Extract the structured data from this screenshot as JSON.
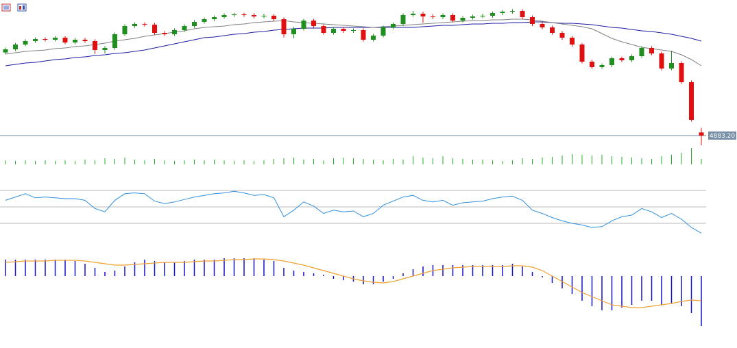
{
  "chart_data": {
    "type": "candlestick",
    "ylim": [
      4859,
      5180
    ],
    "up_color": "#1f8f1f",
    "down_color": "#e01010",
    "candles": [
      [
        5065,
        5076,
        5061,
        5072
      ],
      [
        5072,
        5086,
        5068,
        5082.5
      ],
      [
        5082.5,
        5094,
        5079,
        5090
      ],
      [
        5090,
        5098,
        5086,
        5094.5
      ],
      [
        5094.5,
        5098,
        5089,
        5093
      ],
      [
        5093,
        5101,
        5089,
        5097.5
      ],
      [
        5097.5,
        5101,
        5083,
        5087
      ],
      [
        5087,
        5097,
        5083,
        5093
      ],
      [
        5093,
        5097,
        5086,
        5090
      ],
      [
        5090,
        5094,
        5062,
        5070.5
      ],
      [
        5070.5,
        5079,
        5063,
        5075
      ],
      [
        5075,
        5109,
        5071,
        5105
      ],
      [
        5105,
        5127,
        5101,
        5123
      ],
      [
        5123,
        5131,
        5119,
        5127.5
      ],
      [
        5127.5,
        5131,
        5122,
        5126
      ],
      [
        5126,
        5130,
        5104,
        5108
      ],
      [
        5108,
        5112,
        5101,
        5105
      ],
      [
        5105,
        5118,
        5101,
        5114
      ],
      [
        5114,
        5127,
        5110,
        5123
      ],
      [
        5123,
        5136,
        5119,
        5132
      ],
      [
        5132,
        5142,
        5128,
        5138
      ],
      [
        5138,
        5146,
        5134,
        5142.5
      ],
      [
        5142.5,
        5151,
        5139,
        5147
      ],
      [
        5147,
        5152,
        5143,
        5148.5
      ],
      [
        5148.5,
        5152,
        5143,
        5147
      ],
      [
        5147,
        5151,
        5140,
        5144
      ],
      [
        5144,
        5150,
        5140,
        5145.5
      ],
      [
        5145.5,
        5149,
        5134,
        5138
      ],
      [
        5138,
        5142,
        5098,
        5105
      ],
      [
        5105,
        5121,
        5096,
        5117
      ],
      [
        5117,
        5139,
        5113,
        5135
      ],
      [
        5135,
        5139,
        5119,
        5123
      ],
      [
        5123,
        5127,
        5104,
        5108
      ],
      [
        5108,
        5121,
        5104,
        5117
      ],
      [
        5117,
        5121,
        5108,
        5112.5
      ],
      [
        5112.5,
        5118,
        5108,
        5114
      ],
      [
        5114,
        5118,
        5089,
        5093
      ],
      [
        5093,
        5106,
        5089,
        5102
      ],
      [
        5102,
        5124,
        5098,
        5120
      ],
      [
        5120,
        5131,
        5116,
        5127.5
      ],
      [
        5127.5,
        5151,
        5123,
        5147
      ],
      [
        5147,
        5156,
        5143,
        5150
      ],
      [
        5150,
        5154,
        5130,
        5144
      ],
      [
        5144,
        5149,
        5138,
        5142.5
      ],
      [
        5142.5,
        5151,
        5138,
        5147
      ],
      [
        5147,
        5151,
        5131,
        5135
      ],
      [
        5135,
        5145,
        5131,
        5141
      ],
      [
        5141,
        5148,
        5137,
        5144
      ],
      [
        5144,
        5150,
        5140,
        5145.5
      ],
      [
        5145.5,
        5155,
        5141,
        5151.5
      ],
      [
        5151.5,
        5158,
        5147,
        5154.5
      ],
      [
        5154.5,
        5160,
        5150,
        5156
      ],
      [
        5156,
        5160,
        5138,
        5142.5
      ],
      [
        5142.5,
        5146,
        5123,
        5127.5
      ],
      [
        5127.5,
        5131,
        5116,
        5120
      ],
      [
        5120,
        5124,
        5104,
        5108
      ],
      [
        5108,
        5112,
        5093,
        5097.5
      ],
      [
        5097.5,
        5101,
        5078,
        5082.5
      ],
      [
        5082.5,
        5086,
        5041,
        5045
      ],
      [
        5045,
        5049,
        5029,
        5033
      ],
      [
        5033,
        5041,
        5029,
        5037.5
      ],
      [
        5037.5,
        5056,
        5033,
        5052.5
      ],
      [
        5052.5,
        5056,
        5044,
        5048
      ],
      [
        5048,
        5061,
        5044,
        5057
      ],
      [
        5057,
        5079,
        5053,
        5075
      ],
      [
        5075,
        5079,
        5059,
        5063
      ],
      [
        5063,
        5067,
        5026,
        5030
      ],
      [
        5030,
        5069,
        5026,
        5042
      ],
      [
        5042,
        5046,
        4996,
        5000
      ],
      [
        5000,
        5004,
        4914,
        4917.5
      ],
      [
        4890,
        4900,
        4862,
        4883.2
      ]
    ],
    "ma_fast": {
      "color": "#808080",
      "values": [
        5061.5,
        5064.5,
        5067.5,
        5069,
        5070.5,
        5073.5,
        5075,
        5078,
        5079.5,
        5082.5,
        5085.5,
        5090,
        5093,
        5096,
        5100.5,
        5103.5,
        5106.5,
        5109.5,
        5112.5,
        5117,
        5120,
        5121.5,
        5123,
        5126,
        5127.5,
        5130.5,
        5132,
        5133.5,
        5135,
        5132,
        5130.5,
        5129,
        5127.5,
        5126,
        5124.5,
        5123,
        5121.5,
        5120,
        5121.5,
        5123,
        5124.5,
        5126,
        5127.5,
        5129,
        5130.5,
        5132,
        5133.5,
        5135,
        5135,
        5136.5,
        5136.5,
        5138,
        5138,
        5136.5,
        5133.5,
        5130.5,
        5127.5,
        5124.5,
        5121.5,
        5117,
        5106.5,
        5096,
        5088.5,
        5082.5,
        5076.5,
        5073.5,
        5070.5,
        5067.5,
        5060,
        5049.5,
        5036
      ]
    },
    "ma_slow": {
      "color": "#1a1aa0",
      "values": [
        5036,
        5039,
        5042,
        5043.5,
        5046.5,
        5049.5,
        5051,
        5054,
        5055.5,
        5058.5,
        5060,
        5063,
        5064.5,
        5067.5,
        5070.5,
        5075,
        5079.5,
        5084,
        5088.5,
        5093,
        5097.5,
        5099,
        5102,
        5105,
        5106.5,
        5109.5,
        5111,
        5114,
        5115.5,
        5117,
        5118.5,
        5118.5,
        5118.5,
        5120,
        5120,
        5120,
        5120,
        5120,
        5120,
        5120,
        5120,
        5120,
        5121.5,
        5123,
        5124.5,
        5124.5,
        5126,
        5127.5,
        5127.5,
        5129,
        5129,
        5130.5,
        5130.5,
        5132,
        5132,
        5130.5,
        5129,
        5129,
        5127.5,
        5126,
        5123,
        5120,
        5118.5,
        5115.5,
        5112.5,
        5111,
        5108,
        5105,
        5100.5,
        5096,
        5090
      ]
    },
    "last_price": {
      "value": 4883.2,
      "label": "4883.20"
    },
    "price_line_color": "#7890a8",
    "volume": {
      "color": "#22b022",
      "ylim": [
        0,
        30000
      ],
      "values": [
        6000,
        5000,
        6000,
        5000,
        6000,
        5000,
        6000,
        5000,
        7000,
        6000,
        9000,
        8000,
        10000,
        7000,
        6000,
        8000,
        6000,
        5000,
        6000,
        7000,
        6000,
        7000,
        6000,
        5000,
        6000,
        5000,
        6000,
        8000,
        9000,
        10000,
        7000,
        8000,
        6000,
        9000,
        10000,
        9000,
        8000,
        7000,
        6000,
        8000,
        7000,
        12000,
        10000,
        9000,
        12000,
        9000,
        8000,
        7000,
        7000,
        6000,
        5000,
        6000,
        9000,
        8000,
        10000,
        11000,
        13000,
        15000,
        14000,
        13000,
        14000,
        12000,
        11000,
        10000,
        9000,
        8000,
        12000,
        14000,
        17000,
        24000,
        8000
      ]
    },
    "rsi": {
      "color": "#2f8fe0",
      "ylim": [
        0,
        100
      ],
      "levels": [
        70,
        50,
        30
      ],
      "level_color": "#b8b8b8",
      "values": [
        58,
        62,
        66,
        61,
        62,
        61,
        60,
        60,
        58,
        48,
        44,
        58,
        66,
        67,
        66,
        57,
        54,
        56,
        59,
        62,
        64,
        66,
        67,
        69,
        67,
        64,
        65,
        61,
        38,
        46,
        56,
        51,
        42,
        46,
        44,
        45,
        38,
        42,
        52,
        57,
        62,
        64,
        58,
        56,
        58,
        52,
        55,
        56,
        57,
        60,
        62,
        63,
        58,
        46,
        42,
        37,
        33,
        30,
        28,
        25,
        26,
        33,
        38,
        40,
        48,
        44,
        37,
        42,
        35,
        25,
        18
      ]
    },
    "macd": {
      "color": "#1010c8",
      "signal_color": "#f0a030",
      "ylim": [
        -41,
        19
      ],
      "values": [
        12,
        12,
        12,
        12,
        12,
        12,
        12,
        11,
        9,
        6,
        3,
        4,
        7,
        10,
        12,
        11,
        10,
        10,
        11,
        12,
        12,
        12,
        13,
        13,
        13,
        13,
        12,
        11,
        6,
        4,
        3,
        2,
        1,
        -2,
        -3,
        -4,
        -6,
        -6,
        -4,
        -2,
        2,
        5,
        7,
        8,
        8,
        8,
        8,
        8,
        8,
        8,
        8,
        9,
        7,
        3,
        -1,
        -5,
        -9,
        -13,
        -18,
        -22,
        -25,
        -25,
        -23,
        -21,
        -18,
        -18,
        -21,
        -20,
        -22,
        -27,
        -36.5
      ],
      "signal": [
        10,
        10.5,
        11,
        11,
        11,
        11.5,
        11.5,
        11.5,
        11,
        10,
        9,
        8,
        8,
        8.5,
        9,
        9.5,
        10,
        10,
        10,
        10.5,
        11,
        11,
        11.5,
        12,
        12,
        12.5,
        12.5,
        12,
        11,
        9.5,
        8,
        6,
        4,
        2,
        0,
        -2,
        -3.5,
        -4.5,
        -5,
        -4,
        -2,
        0,
        2,
        4,
        5,
        6,
        6.5,
        7,
        7,
        7,
        7,
        7.5,
        7.5,
        6.5,
        4,
        0,
        -4,
        -8,
        -12,
        -15,
        -18,
        -21,
        -22,
        -23,
        -23,
        -22,
        -21,
        -20,
        -18.5,
        -17.5,
        -18
      ]
    }
  }
}
